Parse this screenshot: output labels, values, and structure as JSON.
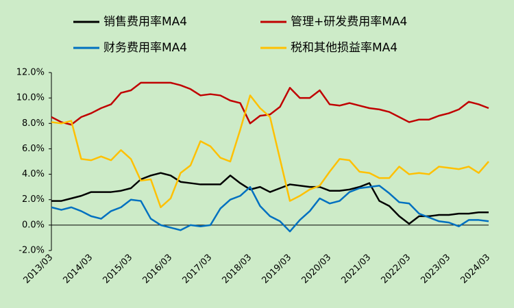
{
  "chart_data": {
    "type": "line",
    "categories": [
      "2013/03",
      null,
      null,
      null,
      "2014/03",
      null,
      null,
      null,
      "2015/03",
      null,
      null,
      null,
      "2016/03",
      null,
      null,
      null,
      "2017/03",
      null,
      null,
      null,
      "2018/03",
      null,
      null,
      null,
      "2019/03",
      null,
      null,
      null,
      "2020/03",
      null,
      null,
      null,
      "2021/03",
      null,
      null,
      null,
      "2022/03",
      null,
      null,
      null,
      "2023/03",
      null,
      null,
      null,
      "2024/03"
    ],
    "series": [
      {
        "name": "销售费用率MA4",
        "color": "#000000",
        "values": [
          1.9,
          1.9,
          2.1,
          2.3,
          2.6,
          2.6,
          2.6,
          2.7,
          2.9,
          3.6,
          3.9,
          4.1,
          3.9,
          3.4,
          3.3,
          3.2,
          3.2,
          3.2,
          3.9,
          3.3,
          2.8,
          3.0,
          2.6,
          2.9,
          3.2,
          3.1,
          3.0,
          3.0,
          2.7,
          2.7,
          2.8,
          3.0,
          3.3,
          1.9,
          1.5,
          0.7,
          0.1,
          0.7,
          0.7,
          0.8,
          0.8,
          0.9,
          0.9,
          1.0,
          1.0
        ]
      },
      {
        "name": "管理+研发费用率MA4",
        "color": "#c00000",
        "values": [
          8.5,
          8.1,
          7.9,
          8.5,
          8.8,
          9.2,
          9.5,
          10.4,
          10.6,
          11.2,
          11.2,
          11.2,
          11.2,
          11.0,
          10.7,
          10.2,
          10.3,
          10.2,
          9.8,
          9.6,
          8.0,
          8.6,
          8.7,
          9.3,
          10.8,
          10.0,
          10.0,
          10.6,
          9.5,
          9.4,
          9.6,
          9.4,
          9.2,
          9.1,
          8.9,
          8.5,
          8.1,
          8.3,
          8.3,
          8.6,
          8.8,
          9.1,
          9.7,
          9.5,
          9.2
        ]
      },
      {
        "name": "财务费用率MA4",
        "color": "#0070c0",
        "values": [
          1.4,
          1.2,
          1.4,
          1.1,
          0.7,
          0.5,
          1.1,
          1.4,
          2.0,
          1.9,
          0.5,
          0.0,
          -0.2,
          -0.4,
          0.0,
          -0.1,
          0.0,
          1.3,
          2.0,
          2.3,
          3.0,
          1.5,
          0.7,
          0.3,
          -0.5,
          0.4,
          1.1,
          2.1,
          1.7,
          1.9,
          2.6,
          2.9,
          3.0,
          3.1,
          2.5,
          1.8,
          1.7,
          0.9,
          0.6,
          0.3,
          0.2,
          -0.1,
          0.4,
          0.4,
          0.3
        ]
      },
      {
        "name": "税和其他损益率MA4",
        "color": "#ffc000",
        "values": [
          8.1,
          8.0,
          8.2,
          5.2,
          5.1,
          5.4,
          5.1,
          5.9,
          5.2,
          3.5,
          3.6,
          1.4,
          2.1,
          4.1,
          4.7,
          6.6,
          6.2,
          5.3,
          5.0,
          7.5,
          10.2,
          9.2,
          8.5,
          5.2,
          1.9,
          2.3,
          2.8,
          3.1,
          4.2,
          5.2,
          5.1,
          4.2,
          4.1,
          3.7,
          3.7,
          4.6,
          4.0,
          4.1,
          4.0,
          4.6,
          4.5,
          4.4,
          4.6,
          4.1,
          5.0
        ]
      }
    ],
    "ylim": [
      -2,
      12
    ],
    "yticks": [
      {
        "value": -2,
        "label": "-2.0%"
      },
      {
        "value": 0,
        "label": "0.0%"
      },
      {
        "value": 2,
        "label": "2.0%"
      },
      {
        "value": 4,
        "label": "4.0%"
      },
      {
        "value": 6,
        "label": "6.0%"
      },
      {
        "value": 8,
        "label": "8.0%"
      },
      {
        "value": 10,
        "label": "10.0%"
      },
      {
        "value": 12,
        "label": "12.0%"
      }
    ],
    "grid": false
  }
}
